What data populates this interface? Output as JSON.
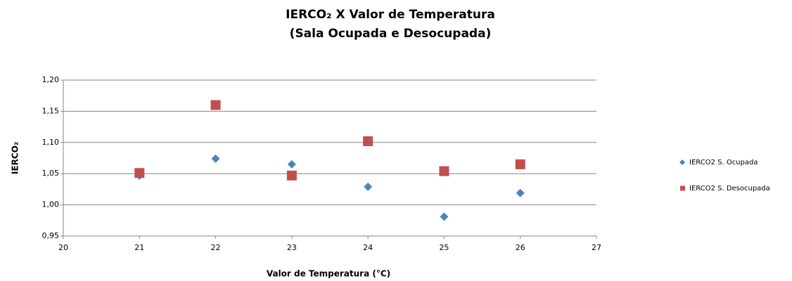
{
  "chart_data": {
    "type": "scatter",
    "title": "IERCO₂ X Valor de Temperatura",
    "subtitle": "(Sala Ocupada e Desocupada)",
    "x_label": "Valor de Temperatura (°C)",
    "y_label": "IERCO₂",
    "x": [
      21,
      22,
      23,
      24,
      25,
      26
    ],
    "series": [
      {
        "name": "IERCO2 S. Ocupada",
        "color": "#4f81bd",
        "marker": "diamond",
        "values": [
          1.047,
          1.074,
          1.065,
          1.029,
          0.981,
          1.019
        ]
      },
      {
        "name": "IERCO2 S. Desocupada",
        "color": "#c0504d",
        "marker": "square",
        "values": [
          1.051,
          1.16,
          1.047,
          1.102,
          1.054,
          1.065
        ]
      }
    ],
    "xlim": [
      20,
      27
    ],
    "xticks": [
      20,
      21,
      22,
      23,
      24,
      25,
      26,
      27
    ],
    "ylim": [
      0.95,
      1.2
    ],
    "yticks": [
      {
        "value": 0.95,
        "label": "0,95"
      },
      {
        "value": 1.0,
        "label": "1,00"
      },
      {
        "value": 1.05,
        "label": "1,05"
      },
      {
        "value": 1.1,
        "label": "1,10"
      },
      {
        "value": 1.15,
        "label": "1,15"
      },
      {
        "value": 1.2,
        "label": "1,20"
      }
    ],
    "grid": true,
    "legend": "right"
  }
}
